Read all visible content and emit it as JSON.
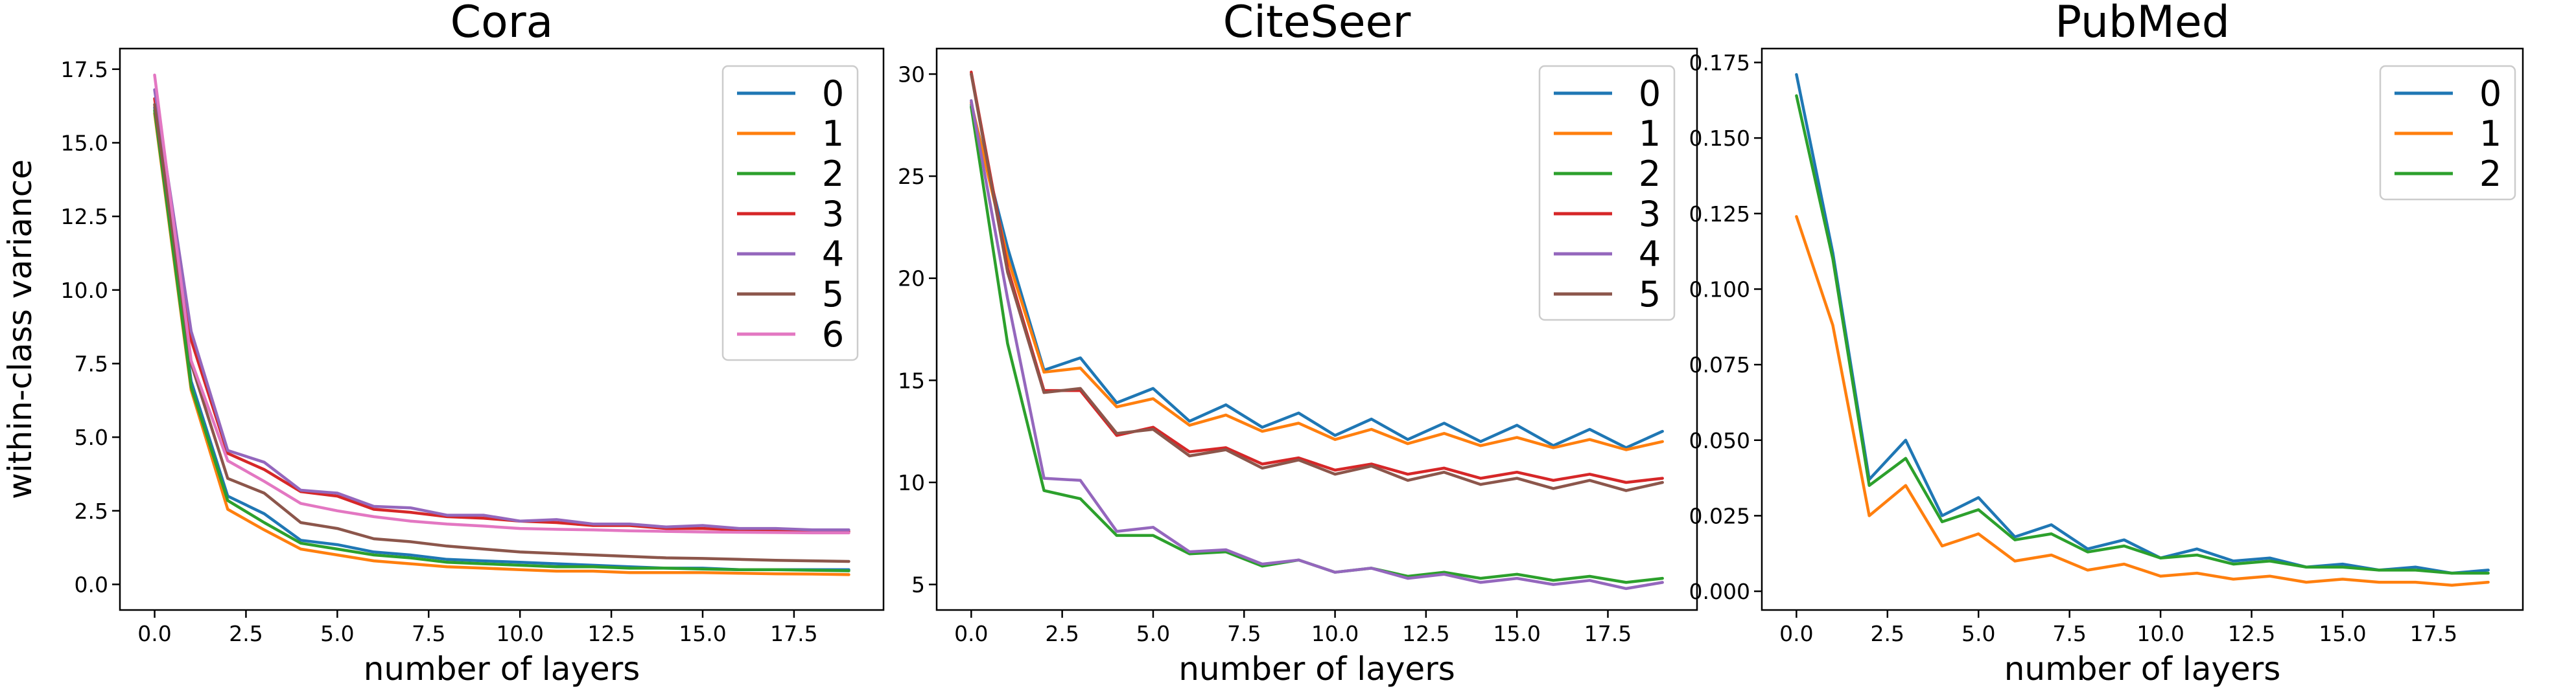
{
  "colors": [
    "#1f77b4",
    "#ff7f0e",
    "#2ca02c",
    "#d62728",
    "#9467bd",
    "#8c564b",
    "#e377c2"
  ],
  "chart_data": [
    {
      "type": "line",
      "title": "Cora",
      "xlabel": "number of layers",
      "ylabel": "within-class variance",
      "x": [
        0,
        1,
        2,
        3,
        4,
        5,
        6,
        7,
        8,
        9,
        10,
        11,
        12,
        13,
        14,
        15,
        16,
        17,
        18,
        19
      ],
      "xlim": [
        -0.95,
        19.95
      ],
      "ylim": [
        -0.87,
        18.2
      ],
      "xticks": [
        0.0,
        2.5,
        5.0,
        7.5,
        10.0,
        12.5,
        15.0,
        17.5
      ],
      "xtick_labels": [
        "0.0",
        "2.5",
        "5.0",
        "7.5",
        "10.0",
        "12.5",
        "15.0",
        "17.5"
      ],
      "yticks": [
        0.0,
        2.5,
        5.0,
        7.5,
        10.0,
        12.5,
        15.0,
        17.5
      ],
      "ytick_labels": [
        "0.0",
        "2.5",
        "5.0",
        "7.5",
        "10.0",
        "12.5",
        "15.0",
        "17.5"
      ],
      "legend": "top-right",
      "grid": false,
      "series": [
        {
          "name": "0",
          "values": [
            16.2,
            6.9,
            3.0,
            2.4,
            1.5,
            1.35,
            1.1,
            1.0,
            0.85,
            0.8,
            0.75,
            0.7,
            0.65,
            0.6,
            0.55,
            0.55,
            0.5,
            0.5,
            0.5,
            0.5
          ]
        },
        {
          "name": "1",
          "values": [
            16.0,
            6.6,
            2.55,
            1.85,
            1.2,
            1.0,
            0.8,
            0.7,
            0.6,
            0.55,
            0.5,
            0.45,
            0.45,
            0.4,
            0.4,
            0.4,
            0.38,
            0.36,
            0.35,
            0.33
          ]
        },
        {
          "name": "2",
          "values": [
            16.1,
            6.7,
            2.85,
            2.1,
            1.4,
            1.2,
            1.0,
            0.9,
            0.75,
            0.7,
            0.65,
            0.6,
            0.6,
            0.55,
            0.55,
            0.52,
            0.5,
            0.5,
            0.48,
            0.46
          ]
        },
        {
          "name": "3",
          "values": [
            16.5,
            8.3,
            4.45,
            3.9,
            3.15,
            3.0,
            2.55,
            2.45,
            2.3,
            2.25,
            2.15,
            2.1,
            2.0,
            2.0,
            1.9,
            1.9,
            1.85,
            1.85,
            1.8,
            1.8
          ]
        },
        {
          "name": "4",
          "values": [
            16.8,
            8.6,
            4.55,
            4.15,
            3.2,
            3.1,
            2.65,
            2.6,
            2.35,
            2.35,
            2.15,
            2.2,
            2.05,
            2.05,
            1.95,
            2.0,
            1.9,
            1.9,
            1.85,
            1.85
          ]
        },
        {
          "name": "5",
          "values": [
            16.3,
            7.5,
            3.6,
            3.1,
            2.1,
            1.9,
            1.55,
            1.45,
            1.3,
            1.2,
            1.1,
            1.05,
            1.0,
            0.95,
            0.9,
            0.88,
            0.85,
            0.82,
            0.8,
            0.78
          ]
        },
        {
          "name": "6",
          "values": [
            17.3,
            7.6,
            4.2,
            3.5,
            2.75,
            2.5,
            2.3,
            2.15,
            2.05,
            1.98,
            1.9,
            1.87,
            1.85,
            1.82,
            1.8,
            1.78,
            1.77,
            1.76,
            1.75,
            1.75
          ]
        }
      ]
    },
    {
      "type": "line",
      "title": "CiteSeer",
      "xlabel": "number of layers",
      "ylabel": "",
      "x": [
        0,
        1,
        2,
        3,
        4,
        5,
        6,
        7,
        8,
        9,
        10,
        11,
        12,
        13,
        14,
        15,
        16,
        17,
        18,
        19
      ],
      "xlim": [
        -0.95,
        19.95
      ],
      "ylim": [
        3.75,
        31.25
      ],
      "xticks": [
        0.0,
        2.5,
        5.0,
        7.5,
        10.0,
        12.5,
        15.0,
        17.5
      ],
      "xtick_labels": [
        "0.0",
        "2.5",
        "5.0",
        "7.5",
        "10.0",
        "12.5",
        "15.0",
        "17.5"
      ],
      "yticks": [
        5,
        10,
        15,
        20,
        25,
        30
      ],
      "ytick_labels": [
        "5",
        "10",
        "15",
        "20",
        "25",
        "30"
      ],
      "legend": "top-right",
      "grid": false,
      "series": [
        {
          "name": "0",
          "values": [
            28.5,
            21.5,
            15.5,
            16.1,
            13.9,
            14.6,
            13.0,
            13.8,
            12.7,
            13.4,
            12.3,
            13.1,
            12.1,
            12.9,
            12.0,
            12.8,
            11.8,
            12.6,
            11.7,
            12.5
          ]
        },
        {
          "name": "1",
          "values": [
            28.6,
            21.0,
            15.4,
            15.6,
            13.7,
            14.1,
            12.8,
            13.3,
            12.5,
            12.9,
            12.1,
            12.6,
            11.9,
            12.4,
            11.8,
            12.2,
            11.7,
            12.1,
            11.6,
            12.0
          ]
        },
        {
          "name": "2",
          "values": [
            28.4,
            16.8,
            9.6,
            9.2,
            7.4,
            7.4,
            6.5,
            6.6,
            5.9,
            6.2,
            5.6,
            5.8,
            5.4,
            5.6,
            5.3,
            5.5,
            5.2,
            5.4,
            5.1,
            5.3
          ]
        },
        {
          "name": "3",
          "values": [
            30.1,
            20.5,
            14.5,
            14.5,
            12.3,
            12.7,
            11.5,
            11.7,
            10.9,
            11.2,
            10.6,
            10.9,
            10.4,
            10.7,
            10.2,
            10.5,
            10.1,
            10.4,
            10.0,
            10.2
          ]
        },
        {
          "name": "4",
          "values": [
            28.7,
            19.0,
            10.2,
            10.1,
            7.6,
            7.8,
            6.6,
            6.7,
            6.0,
            6.2,
            5.6,
            5.8,
            5.3,
            5.5,
            5.1,
            5.3,
            5.0,
            5.2,
            4.8,
            5.1
          ]
        },
        {
          "name": "5",
          "values": [
            30.0,
            20.3,
            14.4,
            14.6,
            12.4,
            12.6,
            11.3,
            11.6,
            10.7,
            11.1,
            10.4,
            10.8,
            10.1,
            10.5,
            9.9,
            10.2,
            9.7,
            10.1,
            9.6,
            10.0
          ]
        }
      ]
    },
    {
      "type": "line",
      "title": "PubMed",
      "xlabel": "number of layers",
      "ylabel": "",
      "x": [
        0,
        1,
        2,
        3,
        4,
        5,
        6,
        7,
        8,
        9,
        10,
        11,
        12,
        13,
        14,
        15,
        16,
        17,
        18,
        19
      ],
      "xlim": [
        -0.95,
        19.95
      ],
      "ylim": [
        -0.0062,
        0.1796
      ],
      "xticks": [
        0.0,
        2.5,
        5.0,
        7.5,
        10.0,
        12.5,
        15.0,
        17.5
      ],
      "xtick_labels": [
        "0.0",
        "2.5",
        "5.0",
        "7.5",
        "10.0",
        "12.5",
        "15.0",
        "17.5"
      ],
      "yticks": [
        0.0,
        0.025,
        0.05,
        0.075,
        0.1,
        0.125,
        0.15,
        0.175
      ],
      "ytick_labels": [
        "0.000",
        "0.025",
        "0.050",
        "0.075",
        "0.100",
        "0.125",
        "0.150",
        "0.175"
      ],
      "legend": "top-right",
      "grid": false,
      "series": [
        {
          "name": "0",
          "values": [
            0.171,
            0.112,
            0.037,
            0.05,
            0.025,
            0.031,
            0.018,
            0.022,
            0.014,
            0.017,
            0.011,
            0.014,
            0.01,
            0.011,
            0.008,
            0.009,
            0.007,
            0.008,
            0.006,
            0.007
          ]
        },
        {
          "name": "1",
          "values": [
            0.124,
            0.088,
            0.025,
            0.035,
            0.015,
            0.019,
            0.01,
            0.012,
            0.007,
            0.009,
            0.005,
            0.006,
            0.004,
            0.005,
            0.003,
            0.004,
            0.003,
            0.003,
            0.002,
            0.003
          ]
        },
        {
          "name": "2",
          "values": [
            0.164,
            0.11,
            0.035,
            0.044,
            0.023,
            0.027,
            0.017,
            0.019,
            0.013,
            0.015,
            0.011,
            0.012,
            0.009,
            0.01,
            0.008,
            0.008,
            0.007,
            0.007,
            0.006,
            0.006
          ]
        }
      ]
    }
  ]
}
